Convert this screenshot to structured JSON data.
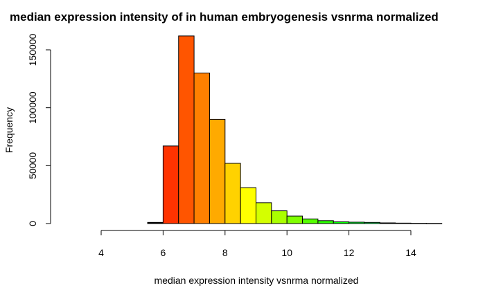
{
  "chart_data": {
    "type": "bar",
    "title": "median expression intensity of in human embryogenesis vsnrma normalized",
    "xlabel": "median expression intensity vsnrma normalized",
    "ylabel": "Frequency",
    "xlim": [
      4,
      15
    ],
    "ylim": [
      0,
      165000
    ],
    "x_ticks": [
      "4",
      "6",
      "8",
      "10",
      "12",
      "14"
    ],
    "y_ticks": [
      "0",
      "50000",
      "100000",
      "150000"
    ],
    "bin_width": 0.5,
    "bins": [
      {
        "start": 5.5,
        "value": 1000,
        "color": "#000000"
      },
      {
        "start": 6.0,
        "value": 67000,
        "color": "#FF3300"
      },
      {
        "start": 6.5,
        "value": 162000,
        "color": "#FF5500"
      },
      {
        "start": 7.0,
        "value": 130000,
        "color": "#FF8000"
      },
      {
        "start": 7.5,
        "value": 90000,
        "color": "#FFAA00"
      },
      {
        "start": 8.0,
        "value": 52000,
        "color": "#FFD200"
      },
      {
        "start": 8.5,
        "value": 31000,
        "color": "#FFFF00"
      },
      {
        "start": 9.0,
        "value": 18000,
        "color": "#D4FF00"
      },
      {
        "start": 9.5,
        "value": 11000,
        "color": "#AAFF00"
      },
      {
        "start": 10.0,
        "value": 6500,
        "color": "#80FF00"
      },
      {
        "start": 10.5,
        "value": 4000,
        "color": "#55FF00"
      },
      {
        "start": 11.0,
        "value": 2500,
        "color": "#2BFF00"
      },
      {
        "start": 11.5,
        "value": 1500,
        "color": "#00FF00"
      },
      {
        "start": 12.0,
        "value": 1200,
        "color": "#00FF2B"
      },
      {
        "start": 12.5,
        "value": 1000,
        "color": "#00FF55"
      },
      {
        "start": 13.0,
        "value": 600,
        "color": "#00FF80"
      },
      {
        "start": 13.5,
        "value": 400,
        "color": "#00FFAA"
      },
      {
        "start": 14.0,
        "value": 200,
        "color": "#00FFD4"
      },
      {
        "start": 14.5,
        "value": 100,
        "color": "#00FFFF"
      }
    ]
  }
}
